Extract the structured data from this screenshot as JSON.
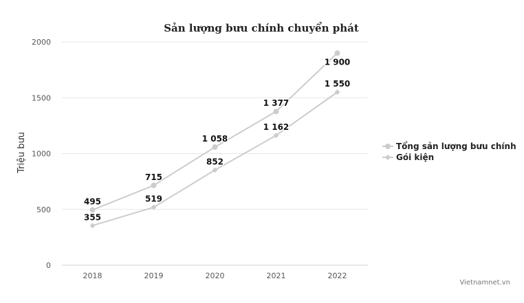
{
  "chart_data": {
    "type": "line",
    "title": "Sản lượng bưu chính chuyển phát",
    "ylabel": "Triệu bưu",
    "xlabel": "",
    "x": [
      "2018",
      "2019",
      "2020",
      "2021",
      "2022"
    ],
    "ylim": [
      0,
      2000
    ],
    "yticks": [
      0,
      500,
      1000,
      1500,
      2000
    ],
    "grid": true,
    "legend_position": "right",
    "series": [
      {
        "name": "Tổng sản lượng bưu chính",
        "values": [
          495,
          715,
          1058,
          1377,
          1900
        ],
        "labels": [
          "495",
          "715",
          "1 058",
          "1 377",
          "1 900"
        ],
        "marker": "circle",
        "color": "#cccccc"
      },
      {
        "name": "Gói kiện",
        "values": [
          355,
          519,
          852,
          1162,
          1550
        ],
        "labels": [
          "355",
          "519",
          "852",
          "1 162",
          "1 550"
        ],
        "marker": "diamond",
        "color": "#cccccc"
      }
    ]
  },
  "credit": "Vietnamnet.vn"
}
